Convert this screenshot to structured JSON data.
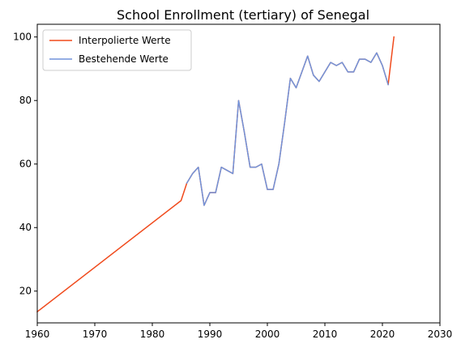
{
  "chart_data": {
    "type": "line",
    "title": "School Enrollment (tertiary) of Senegal",
    "xlabel": "",
    "ylabel": "",
    "xlim": [
      1960,
      2030
    ],
    "ylim": [
      10,
      104
    ],
    "x_ticks": [
      1960,
      1970,
      1980,
      1990,
      2000,
      2010,
      2020,
      2030
    ],
    "y_ticks": [
      20,
      40,
      60,
      80,
      100
    ],
    "grid": false,
    "legend_position": "top-left",
    "series": [
      {
        "name": "Interpolierte Werte",
        "color": "#f04a1c",
        "x": [
          1960,
          1985,
          1986,
          1987,
          1988,
          1989,
          1990,
          1991,
          1992,
          1993,
          1994,
          1995,
          1996,
          1997,
          1998,
          1999,
          2000,
          2001,
          2002,
          2003,
          2004,
          2005,
          2006,
          2007,
          2008,
          2009,
          2010,
          2011,
          2012,
          2013,
          2014,
          2015,
          2016,
          2017,
          2018,
          2019,
          2020,
          2021,
          2022
        ],
        "y": [
          13.5,
          48.5,
          54,
          57,
          59,
          47,
          51,
          51,
          59,
          58,
          57,
          80,
          70,
          59,
          59,
          60,
          52,
          52,
          60,
          73,
          87,
          84,
          89,
          94,
          88,
          86,
          89,
          92,
          91,
          92,
          89,
          89,
          93,
          93,
          92,
          95,
          91,
          85,
          100
        ]
      },
      {
        "name": "Bestehende Werte",
        "color": "#7094dc",
        "x": [
          1986,
          1987,
          1988,
          1989,
          1990,
          1991,
          1992,
          1993,
          1994,
          1995,
          1996,
          1997,
          1998,
          1999,
          2000,
          2001,
          2002,
          2003,
          2004,
          2005,
          2006,
          2007,
          2008,
          2009,
          2010,
          2011,
          2012,
          2013,
          2014,
          2015,
          2016,
          2017,
          2018,
          2019,
          2020,
          2021
        ],
        "y": [
          54,
          57,
          59,
          47,
          51,
          51,
          59,
          58,
          57,
          80,
          70,
          59,
          59,
          60,
          52,
          52,
          60,
          73,
          87,
          84,
          89,
          94,
          88,
          86,
          89,
          92,
          91,
          92,
          89,
          89,
          93,
          93,
          92,
          95,
          91,
          85
        ]
      }
    ]
  }
}
